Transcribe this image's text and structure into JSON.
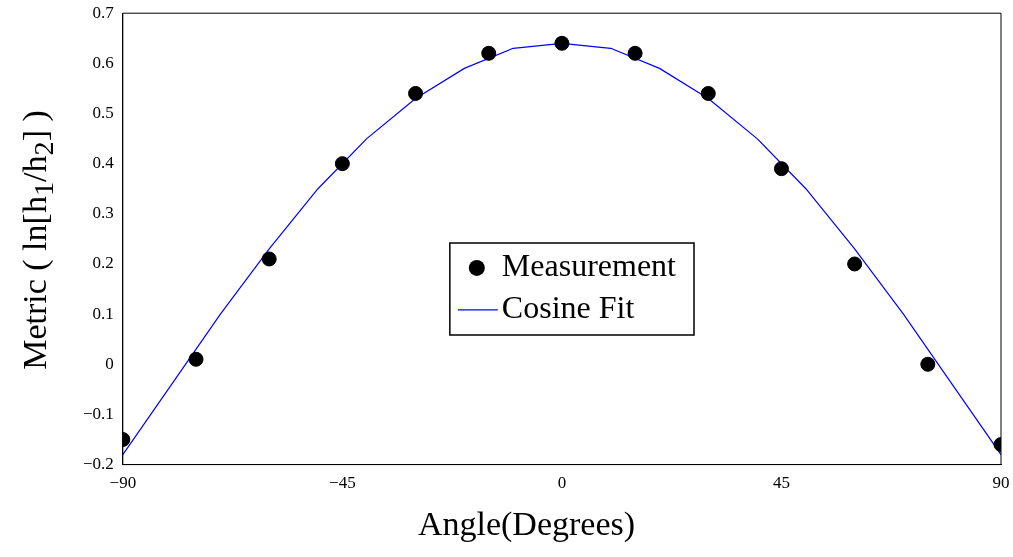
{
  "chart_data": {
    "type": "scatter",
    "xlabel": "Angle(Degrees)",
    "ylabel": "Metric ( ln[h$_{1}$/h$_{2}$] )",
    "xlim": [
      -90,
      90
    ],
    "xticks": [
      {
        "value": -90,
        "label": "−90"
      },
      {
        "value": -45,
        "label": "−45"
      },
      0,
      45,
      90
    ],
    "ylim": [
      -0.2,
      0.7
    ],
    "yticks": [
      {
        "value": -0.2,
        "label": "−0.2"
      },
      {
        "value": -0.1,
        "label": "−0.1"
      },
      0.0,
      0.1,
      0.2,
      0.3,
      0.4,
      0.5,
      0.6,
      0.7
    ],
    "grid": false,
    "legend": "center",
    "marker": "circle",
    "series": [
      {
        "name": "Measurement",
        "color": "#000000",
        "x": [
          -90,
          -75,
          -60,
          -45,
          -30,
          -15,
          0,
          15,
          30,
          45,
          60,
          75,
          90
        ],
        "values": [
          -0.15,
          0.01,
          0.21,
          0.4,
          0.54,
          0.62,
          0.64,
          0.62,
          0.54,
          0.39,
          0.2,
          0.0,
          -0.16
        ]
      },
      {
        "name": "Cosine Fit",
        "type": "line",
        "color": "#0000ff",
        "marker": "none",
        "x": [
          -90,
          -80,
          -70,
          -60,
          -50,
          -40,
          -30,
          -20,
          -10,
          0,
          10,
          20,
          30,
          40,
          50,
          60,
          70,
          80,
          90
        ],
        "values": [
          -0.18,
          -0.04,
          0.1,
          0.23,
          0.35,
          0.45,
          0.53,
          0.59,
          0.63,
          0.64,
          0.63,
          0.59,
          0.53,
          0.45,
          0.35,
          0.23,
          0.1,
          -0.04,
          -0.18
        ]
      }
    ]
  }
}
